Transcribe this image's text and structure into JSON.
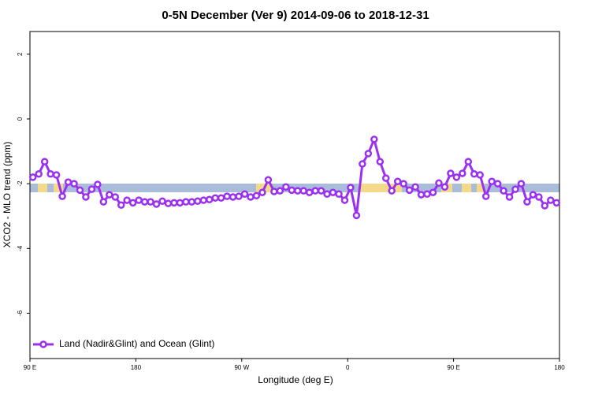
{
  "chart_data": {
    "type": "line",
    "title": "0-5N December (Ver 9)   2014-09-06 to 2018-12-31",
    "x_label": "Longitude (deg E)",
    "y_label": "XCO2 - MLO trend (ppm)",
    "xlim": [
      90,
      540
    ],
    "ylim": [
      -7.4,
      2.7
    ],
    "xticks": [
      {
        "value": 90,
        "label": "90 E"
      },
      180,
      {
        "value": 270,
        "label": "90 W"
      },
      {
        "value": 360,
        "label": "0"
      },
      {
        "value": 450,
        "label": "90 E"
      },
      {
        "value": 540,
        "label": "180"
      }
    ],
    "yticks": [
      -6,
      -4,
      -2,
      0,
      2
    ],
    "legend": "bottom-left",
    "x": [
      92.5,
      97.5,
      102.5,
      107.5,
      112.5,
      117.5,
      122.5,
      127.5,
      132.5,
      137.5,
      142.5,
      147.5,
      152.5,
      157.5,
      162.5,
      167.5,
      172.5,
      177.5,
      182.5,
      187.5,
      192.5,
      197.5,
      202.5,
      207.5,
      212.5,
      217.5,
      222.5,
      227.5,
      232.5,
      237.5,
      242.5,
      247.5,
      252.5,
      257.5,
      262.5,
      267.5,
      272.5,
      277.5,
      282.5,
      287.5,
      292.5,
      297.5,
      302.5,
      307.5,
      312.5,
      317.5,
      322.5,
      327.5,
      332.5,
      337.5,
      342.5,
      347.5,
      352.5,
      357.5,
      362.5,
      367.5,
      372.5,
      377.5,
      382.5,
      387.5,
      392.5,
      397.5,
      402.5,
      407.5,
      412.5,
      417.5,
      422.5,
      427.5,
      432.5,
      437.5,
      442.5,
      447.5,
      452.5,
      457.5,
      462.5,
      467.5,
      472.5,
      477.5,
      482.5,
      487.5,
      492.5,
      497.5,
      502.5,
      507.5,
      512.5,
      517.5,
      522.5,
      527.5,
      532.5,
      537.5
    ],
    "series": [
      {
        "name": "Land (Nadir&Glint) and Ocean (Glint)",
        "color": "#9b30f0",
        "values": [
          -1.8,
          -1.7,
          -1.32,
          -1.7,
          -1.73,
          -2.39,
          -1.95,
          -2.0,
          -2.2,
          -2.41,
          -2.17,
          -2.02,
          -2.56,
          -2.34,
          -2.41,
          -2.66,
          -2.51,
          -2.59,
          -2.51,
          -2.56,
          -2.56,
          -2.63,
          -2.54,
          -2.61,
          -2.59,
          -2.59,
          -2.56,
          -2.56,
          -2.54,
          -2.51,
          -2.49,
          -2.44,
          -2.44,
          -2.39,
          -2.41,
          -2.39,
          -2.32,
          -2.41,
          -2.37,
          -2.27,
          -1.88,
          -2.24,
          -2.22,
          -2.1,
          -2.2,
          -2.22,
          -2.22,
          -2.27,
          -2.22,
          -2.22,
          -2.32,
          -2.27,
          -2.32,
          -2.51,
          -2.12,
          -2.98,
          -1.39,
          -1.07,
          -0.63,
          -1.32,
          -1.83,
          -2.22,
          -1.93,
          -2.0,
          -2.2,
          -2.1,
          -2.34,
          -2.32,
          -2.27,
          -1.98,
          -2.1,
          -1.68,
          -1.8,
          -1.68,
          -1.32,
          -1.7,
          -1.73,
          -2.39,
          -1.93,
          -2.0,
          -2.22,
          -2.41,
          -2.17,
          -2.0,
          -2.56,
          -2.34,
          -2.41,
          -2.68,
          -2.51,
          -2.59
        ]
      }
    ]
  }
}
